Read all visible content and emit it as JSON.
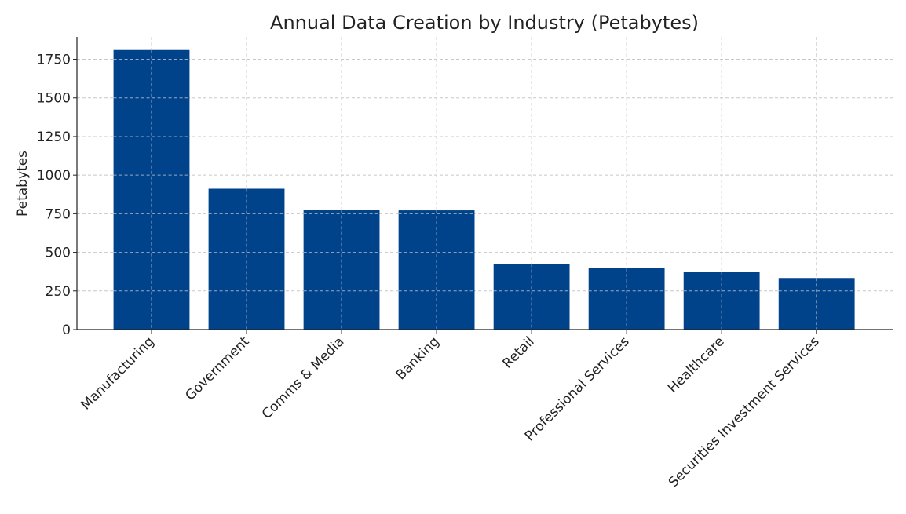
{
  "chart_data": {
    "type": "bar",
    "title": "Annual Data Creation by Industry (Petabytes)",
    "xlabel": "",
    "ylabel": "Petabytes",
    "categories": [
      "Manufacturing",
      "Government",
      "Comms & Media",
      "Banking",
      "Retail",
      "Professional Services",
      "Healthcare",
      "Securities Investment Services"
    ],
    "values": [
      1810,
      912,
      775,
      772,
      424,
      397,
      373,
      334
    ],
    "ylim": [
      0,
      1895
    ],
    "yticks": [
      0,
      250,
      500,
      750,
      1000,
      1250,
      1500,
      1750
    ],
    "grid": true,
    "bar_color": "#00438a",
    "xtick_rotation": 45
  }
}
